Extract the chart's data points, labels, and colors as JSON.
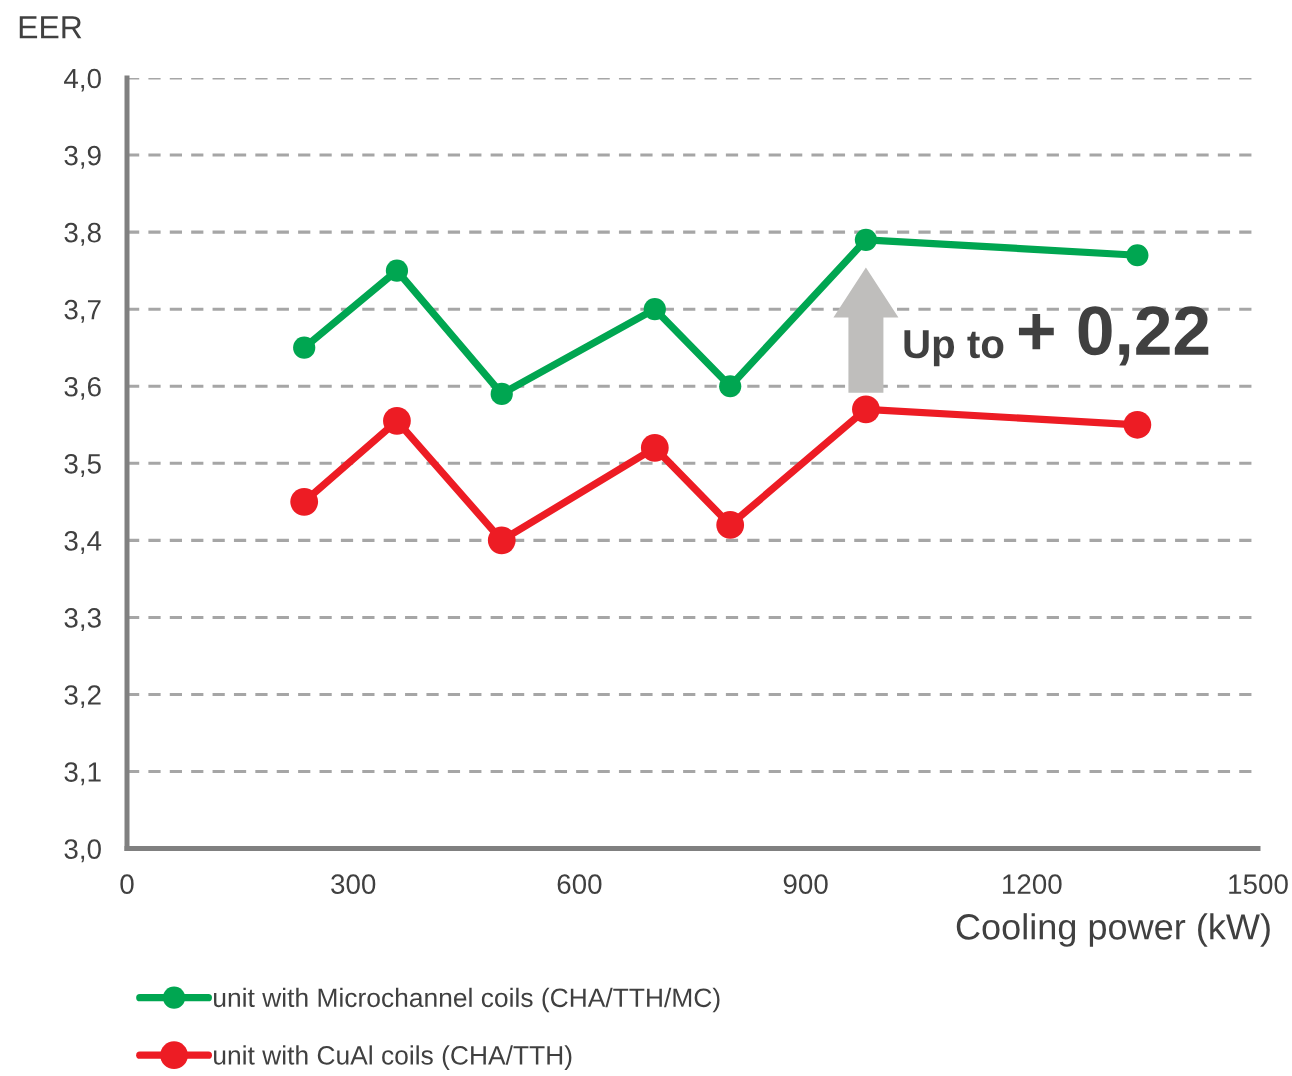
{
  "chart_data": {
    "type": "line",
    "x": [
      235,
      358,
      497,
      700,
      800,
      980,
      1340
    ],
    "series": [
      {
        "name": "unit with Microchannel coils (CHA/TTH/MC)",
        "color": "#00a651",
        "values": [
          3.65,
          3.75,
          3.59,
          3.7,
          3.6,
          3.79,
          3.77
        ]
      },
      {
        "name": "unit with CuAl coils (CHA/TTH)",
        "color": "#ed1c24",
        "values": [
          3.45,
          3.555,
          3.4,
          3.52,
          3.42,
          3.57,
          3.55
        ]
      }
    ],
    "xlabel": "Cooling power (kW)",
    "ylabel": "EER",
    "xlim": [
      0,
      1500
    ],
    "xticks": [
      0,
      300,
      600,
      900,
      1200,
      1500
    ],
    "ylim": [
      3.0,
      4.0
    ],
    "yticks": [
      {
        "value": 3.0,
        "label": "3,0"
      },
      {
        "value": 3.1,
        "label": "3,1"
      },
      {
        "value": 3.2,
        "label": "3,2"
      },
      {
        "value": 3.3,
        "label": "3,3"
      },
      {
        "value": 3.4,
        "label": "3,4"
      },
      {
        "value": 3.5,
        "label": "3,5"
      },
      {
        "value": 3.6,
        "label": "3,6"
      },
      {
        "value": 3.7,
        "label": "3,7"
      },
      {
        "value": 3.8,
        "label": "3,8"
      },
      {
        "value": 3.9,
        "label": "3,9"
      },
      {
        "value": 4.0,
        "label": "4,0"
      }
    ],
    "annotations": [
      {
        "text": "Up to",
        "x": 980,
        "y": 3.79
      },
      "+ 0,22"
    ],
    "grid": "y",
    "legend": "bottom",
    "marker": "circle",
    "line_style": "solid"
  }
}
